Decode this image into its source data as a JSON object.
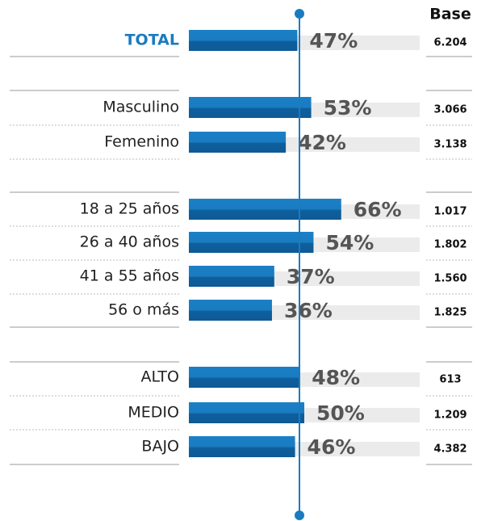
{
  "chart_data": {
    "type": "bar",
    "categories": [
      "TOTAL",
      "Masculino",
      "Femenino",
      "18 a 25 años",
      "26 a 40 años",
      "41 a 55 años",
      "56 o más",
      "ALTO",
      "MEDIO",
      "BAJO"
    ],
    "values": [
      47,
      53,
      42,
      66,
      54,
      37,
      36,
      48,
      50,
      46
    ],
    "value_labels": [
      "47%",
      "53%",
      "42%",
      "66%",
      "54%",
      "37%",
      "36%",
      "48%",
      "50%",
      "46%"
    ],
    "color": "#1a7bc0",
    "xlim": [
      0,
      100
    ],
    "base_title": "Base",
    "base": [
      "6.204",
      "3.066",
      "3.138",
      "1.017",
      "1.802",
      "1.560",
      "1.825",
      "613",
      "1.209",
      "4.382"
    ]
  }
}
